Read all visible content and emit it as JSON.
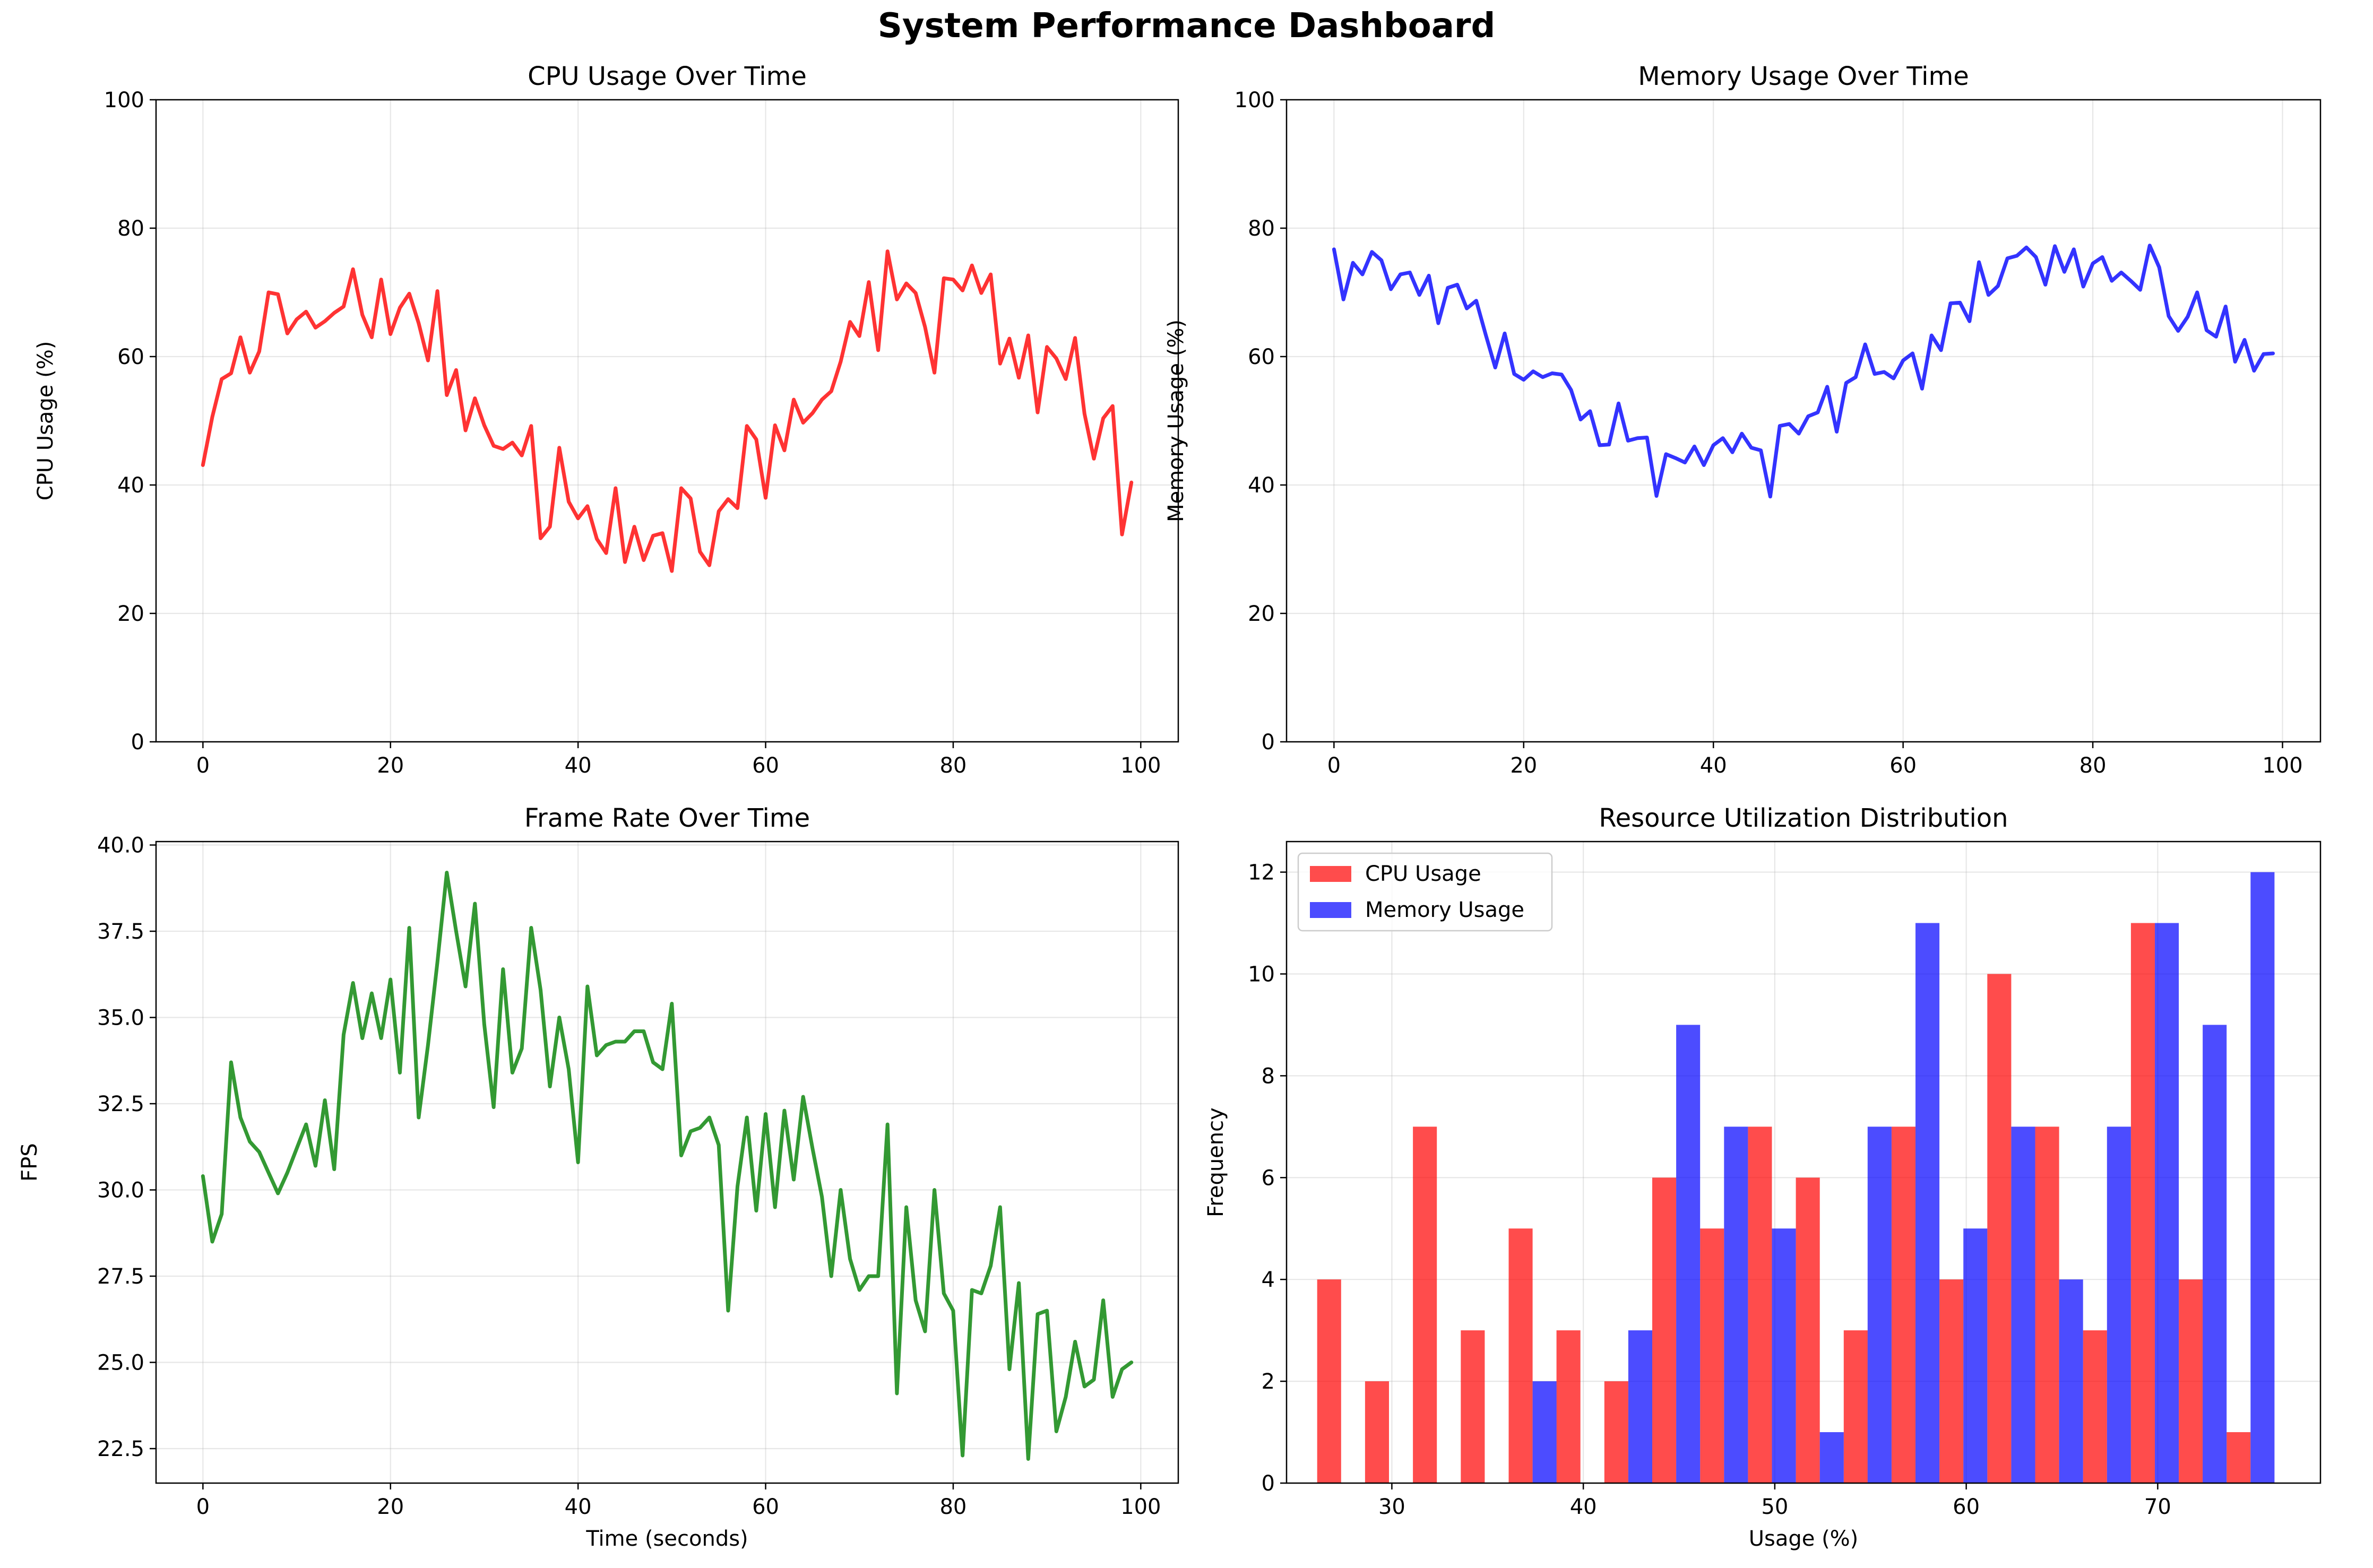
{
  "figure_title": "System Performance Dashboard",
  "chart_data": [
    {
      "id": "cpu",
      "type": "line",
      "title": "CPU Usage Over Time",
      "xlabel": "",
      "ylabel": "CPU Usage (%)",
      "xlim": [
        -5,
        104
      ],
      "ylim": [
        0,
        100
      ],
      "xticks": [
        0,
        20,
        40,
        60,
        80,
        100
      ],
      "yticks": [
        0,
        20,
        40,
        60,
        80,
        100
      ],
      "grid": true,
      "color": "#ff0000",
      "x_start": 0,
      "x_step": 1,
      "values": [
        43.1,
        50.6,
        56.5,
        57.4,
        63.0,
        57.5,
        60.8,
        70.0,
        69.7,
        63.6,
        65.8,
        67.0,
        64.5,
        65.5,
        66.8,
        67.8,
        73.6,
        66.5,
        63.0,
        72.0,
        63.5,
        67.6,
        69.8,
        65.2,
        59.4,
        70.2,
        54.0,
        57.9,
        48.5,
        53.5,
        49.3,
        46.1,
        45.6,
        46.6,
        44.6,
        49.2,
        31.7,
        33.5,
        45.8,
        37.4,
        34.8,
        36.7,
        31.6,
        29.4,
        39.5,
        28.0,
        33.5,
        28.3,
        32.1,
        32.5,
        26.6,
        39.5,
        37.9,
        29.6,
        27.5,
        35.9,
        37.8,
        36.4,
        49.2,
        47.1,
        38.0,
        49.3,
        45.4,
        53.3,
        49.7,
        51.2,
        53.3,
        54.6,
        59.2,
        65.4,
        63.2,
        71.6,
        61.0,
        76.4,
        68.9,
        71.4,
        69.9,
        64.6,
        57.5,
        72.2,
        72.0,
        70.3,
        74.2,
        69.9,
        72.8,
        58.9,
        62.8,
        56.7,
        63.3,
        51.3,
        61.5,
        59.7,
        56.5,
        62.9,
        51.1,
        44.1,
        50.4,
        52.3,
        32.3,
        40.4
      ]
    },
    {
      "id": "memory",
      "type": "line",
      "title": "Memory Usage Over Time",
      "xlabel": "",
      "ylabel": "Memory Usage (%)",
      "xlim": [
        -5,
        104
      ],
      "ylim": [
        0,
        100
      ],
      "xticks": [
        0,
        20,
        40,
        60,
        80,
        100
      ],
      "yticks": [
        0,
        20,
        40,
        60,
        80,
        100
      ],
      "grid": true,
      "color": "#0000ff",
      "x_start": 0,
      "x_step": 1,
      "values": [
        76.7,
        68.9,
        74.6,
        72.8,
        76.3,
        75.0,
        70.5,
        72.8,
        73.1,
        69.6,
        72.6,
        65.2,
        70.7,
        71.2,
        67.5,
        68.7,
        63.4,
        58.3,
        63.6,
        57.3,
        56.4,
        57.7,
        56.8,
        57.4,
        57.2,
        54.8,
        50.2,
        51.5,
        46.2,
        46.3,
        52.7,
        46.9,
        47.3,
        47.4,
        38.3,
        44.8,
        44.2,
        43.5,
        46.0,
        43.1,
        46.2,
        47.3,
        45.1,
        48.0,
        45.8,
        45.4,
        38.2,
        49.2,
        49.5,
        48.0,
        50.7,
        51.3,
        55.3,
        48.3,
        55.9,
        56.8,
        61.9,
        57.3,
        57.6,
        56.6,
        59.4,
        60.5,
        55.0,
        63.3,
        61.0,
        68.3,
        68.4,
        65.5,
        74.7,
        69.6,
        71.0,
        75.3,
        75.7,
        77.0,
        75.5,
        71.2,
        77.2,
        73.2,
        76.7,
        70.9,
        74.5,
        75.5,
        71.8,
        73.1,
        71.8,
        70.4,
        77.3,
        73.9,
        66.3,
        64.0,
        66.2,
        70.0,
        64.1,
        63.1,
        67.8,
        59.2,
        62.6,
        57.8,
        60.4,
        60.5
      ]
    },
    {
      "id": "fps",
      "type": "line",
      "title": "Frame Rate Over Time",
      "xlabel": "Time (seconds)",
      "ylabel": "FPS",
      "xlim": [
        -5,
        104
      ],
      "ylim": [
        21.5,
        40.1
      ],
      "xticks": [
        0,
        20,
        40,
        60,
        80,
        100
      ],
      "yticks": [
        22.5,
        25.0,
        27.5,
        30.0,
        32.5,
        35.0,
        37.5,
        40.0
      ],
      "ytick_labels": [
        "22.5",
        "25.0",
        "27.5",
        "30.0",
        "32.5",
        "35.0",
        "37.5",
        "40.0"
      ],
      "grid": true,
      "color": "#008000",
      "x_start": 0,
      "x_step": 1,
      "values": [
        30.4,
        28.5,
        29.3,
        33.7,
        32.1,
        31.4,
        31.1,
        30.5,
        29.9,
        30.5,
        31.2,
        31.9,
        30.7,
        32.6,
        30.6,
        34.5,
        36.0,
        34.4,
        35.7,
        34.4,
        36.1,
        33.4,
        37.6,
        32.1,
        34.2,
        36.6,
        39.2,
        37.5,
        35.9,
        38.3,
        34.8,
        32.4,
        36.4,
        33.4,
        34.1,
        37.6,
        35.8,
        33.0,
        35.0,
        33.5,
        30.8,
        35.9,
        33.9,
        34.2,
        34.3,
        34.3,
        34.6,
        34.6,
        33.7,
        33.5,
        35.4,
        31.0,
        31.7,
        31.8,
        32.1,
        31.3,
        26.5,
        30.1,
        32.1,
        29.4,
        32.2,
        29.5,
        32.3,
        30.3,
        32.7,
        31.2,
        29.8,
        27.5,
        30.0,
        28.0,
        27.1,
        27.5,
        27.5,
        31.9,
        24.1,
        29.5,
        26.8,
        25.9,
        30.0,
        27.0,
        26.5,
        22.3,
        27.1,
        27.0,
        27.8,
        29.5,
        24.8,
        27.3,
        22.2,
        26.4,
        26.5,
        23.0,
        24.0,
        25.6,
        24.3,
        24.5,
        26.8,
        24.0,
        24.8,
        25.0
      ]
    },
    {
      "id": "distribution",
      "type": "bar",
      "title": "Resource Utilization Distribution",
      "xlabel": "Usage (%)",
      "ylabel": "Frequency",
      "xlim": [
        24.5,
        78.5
      ],
      "ylim": [
        0,
        12.6
      ],
      "xticks": [
        30,
        40,
        50,
        60,
        70
      ],
      "yticks": [
        0,
        2,
        4,
        6,
        8,
        10,
        12
      ],
      "grid": true,
      "legend_position": "top-left",
      "bin_edges": [
        26.1,
        28.6,
        31.1,
        33.6,
        36.1,
        38.6,
        41.1,
        43.6,
        46.1,
        48.6,
        51.1,
        53.6,
        56.1,
        58.6,
        61.1,
        63.6,
        66.1,
        68.6,
        71.1,
        73.6,
        76.1
      ],
      "series": [
        {
          "name": "CPU Usage",
          "color": "#ff0000",
          "values": [
            4,
            2,
            7,
            3,
            5,
            3,
            2,
            6,
            5,
            7,
            6,
            3,
            7,
            4,
            10,
            7,
            3,
            11,
            4,
            1
          ]
        },
        {
          "name": "Memory Usage",
          "color": "#0000ff",
          "values": [
            0,
            0,
            0,
            0,
            2,
            0,
            3,
            9,
            7,
            5,
            1,
            7,
            11,
            5,
            7,
            4,
            7,
            11,
            9,
            12
          ]
        }
      ]
    }
  ]
}
